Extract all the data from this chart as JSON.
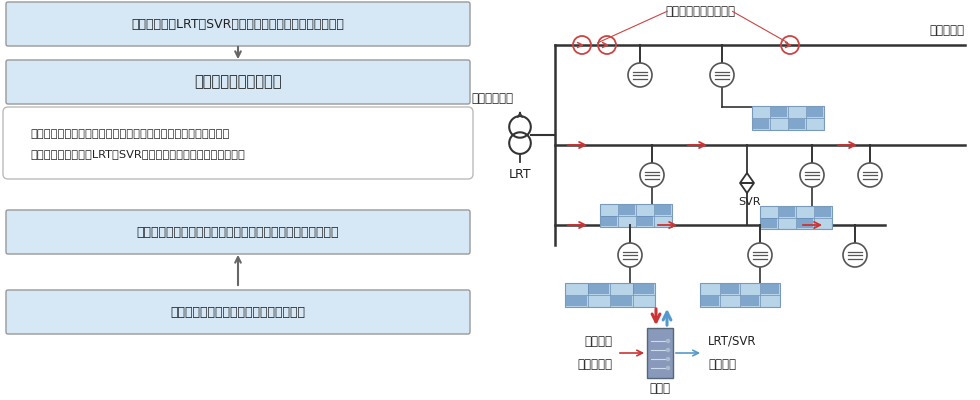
{
  "bg_color": "#ffffff",
  "left_panel": {
    "box1_text": "電圧調整器（LRT、SVRなど）の自端制御による電圧管理",
    "box2_text": "電圧集中制御システム",
    "note_line1": "配電線路上各点に設置されたセンサ内蔵自動開閉器から得られる",
    "note_line2": "電圧情報をもとに、LRT、SVRのタップ位置を自動で選定・制御",
    "box3_text": "各時間帯における適正電圧範囲内での自由な電圧設定が可能",
    "box4_text": "再生可能エネルギー大量導入に対応可能",
    "box_fill": "#d6e8f5",
    "box_edge": "#999999",
    "note_fill": "#ffffff",
    "note_edge": "#bbbbbb",
    "arrow_color": "#666666",
    "text_color": "#222222",
    "font_size": 9.0
  },
  "right_panel": {
    "label_sensor": "センサ内蔵自動開閉器",
    "label_substation": "配電用変電所",
    "label_lrt": "LRT",
    "label_dispersed": "分散型電源",
    "label_svr": "SVR",
    "label_server": "サーバ",
    "label_measure_1": "計測情報",
    "label_measure_2": "開閉器状態",
    "label_control_1": "LRT/SVR",
    "label_control_2": "直接制御",
    "line_color": "#333333",
    "arrow_red": "#cc3333",
    "arrow_blue": "#5599cc",
    "sensor_circle_color": "#cc4444",
    "load_fill": "#ffffff",
    "load_edge": "#555555",
    "solar_dark": "#5b88b8",
    "solar_light": "#b8d4e8",
    "solar_grid": "#7a9abb",
    "server_fill": "#8899bb",
    "server_edge": "#556677",
    "text_color": "#222222",
    "font_size": 8.5
  }
}
